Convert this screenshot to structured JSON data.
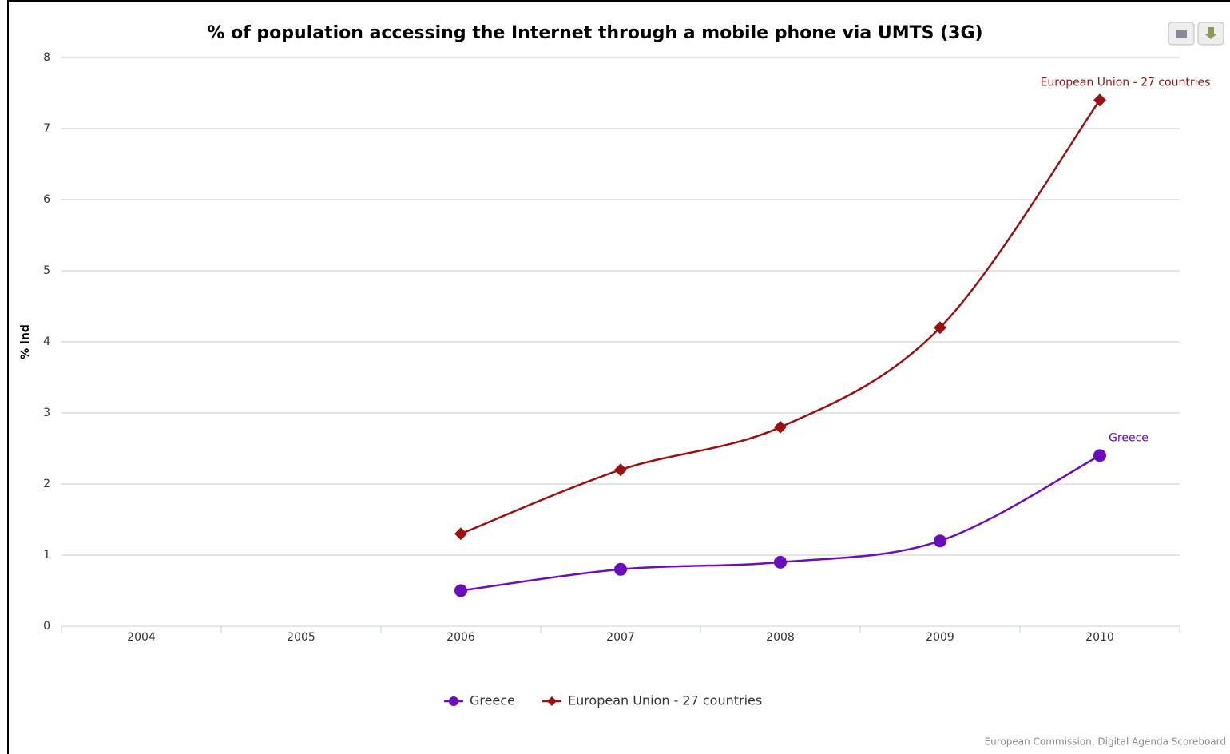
{
  "chart_data": {
    "type": "line",
    "title": "% of population accessing the Internet through a mobile phone via UMTS (3G)",
    "y_label": "% ind",
    "source": "European Commission, Digital Agenda Scoreboard",
    "categories": [
      "2004",
      "2005",
      "2006",
      "2007",
      "2008",
      "2009",
      "2010"
    ],
    "series": [
      {
        "name": "Greece",
        "color": "#6a0dbd",
        "marker": "circle",
        "values": [
          null,
          null,
          0.5,
          0.8,
          0.9,
          1.2,
          2.4
        ]
      },
      {
        "name": "European Union - 27 countries",
        "color": "#9b1010",
        "marker": "diamond",
        "values": [
          null,
          null,
          1.3,
          2.2,
          2.8,
          4.2,
          7.4
        ]
      }
    ],
    "ylim": [
      0,
      8
    ],
    "yticks": [
      0,
      1,
      2,
      3,
      4,
      5,
      6,
      7,
      8
    ],
    "grid": true,
    "legend": "bottom"
  }
}
